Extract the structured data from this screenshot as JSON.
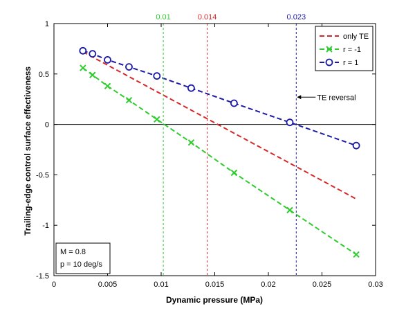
{
  "chart_data": {
    "type": "line",
    "xlabel": "Dynamic pressure (MPa)",
    "ylabel": "Trailing-edge control surface effectiveness",
    "xlim": [
      0,
      0.03
    ],
    "ylim": [
      -1.5,
      1
    ],
    "x_ticks": [
      "0",
      "0.005",
      "0.01",
      "0.015",
      "0.02",
      "0.025",
      "0.03"
    ],
    "y_ticks": [
      "1",
      "0.5",
      "0",
      "-0.5",
      "-1",
      "-1.5"
    ],
    "x_tick_values": [
      0,
      0.005,
      0.01,
      0.015,
      0.02,
      0.025,
      0.03
    ],
    "y_tick_values": [
      1,
      0.5,
      0,
      -0.5,
      -1,
      -1.5
    ],
    "grid": false,
    "legend_position": "top-right",
    "series": [
      {
        "name": "only TE",
        "color": "#d62728",
        "marker": "none",
        "line": "dashed",
        "x": [
          0.0027,
          0.0282
        ],
        "y": [
          0.72,
          -0.74
        ]
      },
      {
        "name": "r = -1",
        "color": "#2ecc2e",
        "marker": "x",
        "line": "dashed",
        "x": [
          0.0027,
          0.0036,
          0.005,
          0.007,
          0.0096,
          0.0128,
          0.0168,
          0.022,
          0.0282
        ],
        "y": [
          0.56,
          0.49,
          0.38,
          0.24,
          0.05,
          -0.18,
          -0.48,
          -0.85,
          -1.29
        ]
      },
      {
        "name": "r = 1",
        "color": "#1a1aa6",
        "marker": "o",
        "line": "dashed",
        "x": [
          0.0027,
          0.0036,
          0.005,
          0.007,
          0.0096,
          0.0128,
          0.0168,
          0.022,
          0.0282
        ],
        "y": [
          0.73,
          0.7,
          0.64,
          0.57,
          0.48,
          0.36,
          0.21,
          0.02,
          -0.21
        ]
      }
    ],
    "vertical_lines": [
      {
        "x": 0.0102,
        "label": "0.01",
        "color": "#2ecc2e"
      },
      {
        "x": 0.0143,
        "label": "0.014",
        "color": "#d62728"
      },
      {
        "x": 0.0226,
        "label": "0.023",
        "color": "#1a1aa6"
      }
    ],
    "annotations": [
      {
        "text": "TE reversal",
        "x": 0.0226,
        "y": 0.27
      }
    ],
    "info_box": [
      "M = 0.8",
      "p = 10 deg/s"
    ]
  }
}
